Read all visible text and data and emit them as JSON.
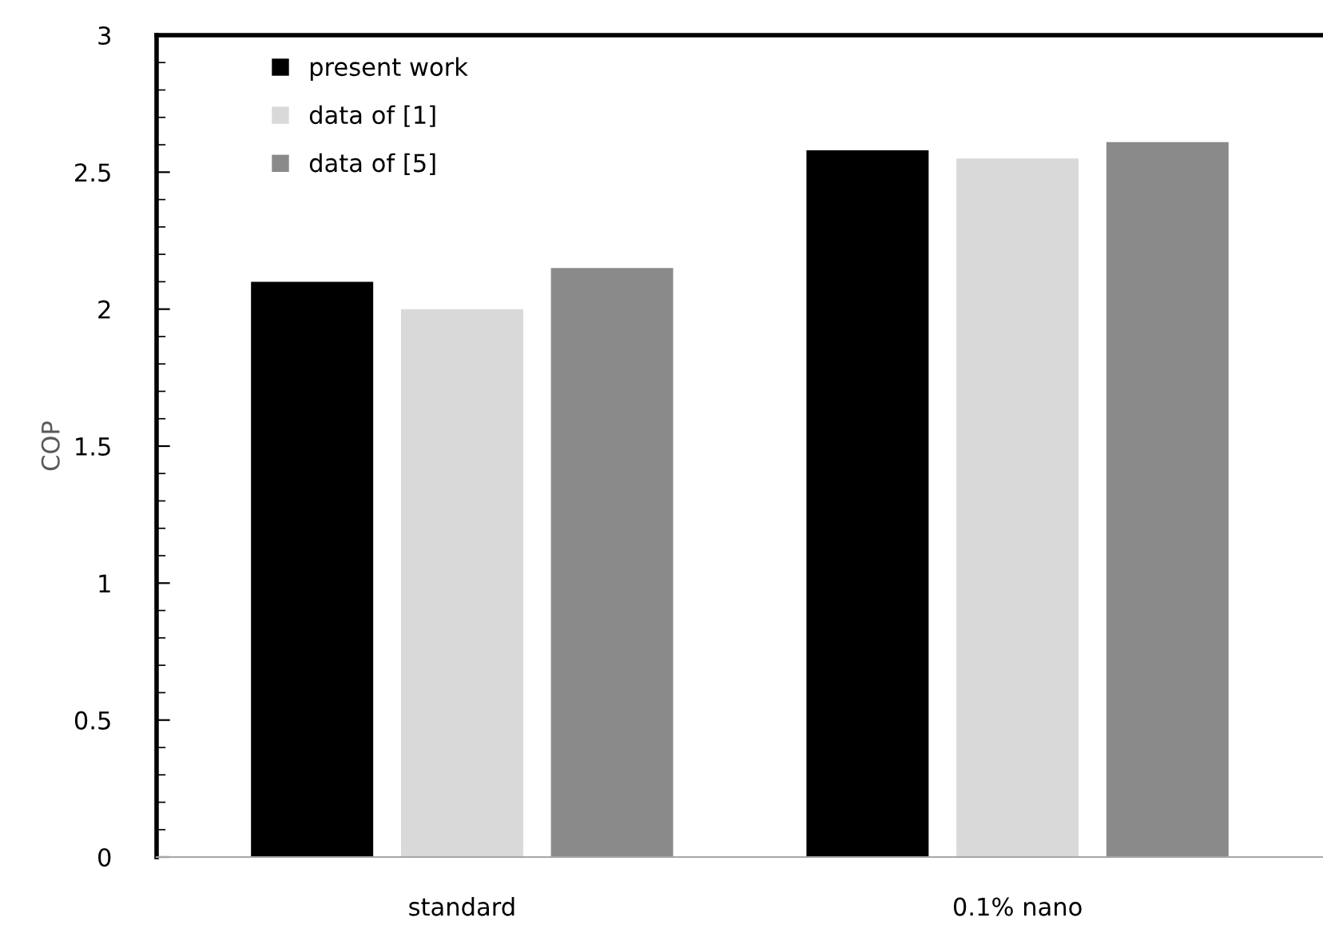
{
  "chart_data": {
    "type": "bar",
    "ylabel": "COP",
    "categories": [
      "standard",
      "0.1% nano"
    ],
    "series": [
      {
        "name": "present work",
        "color": "#000000",
        "values": [
          2.1,
          2.58
        ]
      },
      {
        "name": "data of [1]",
        "color": "#d9d9d9",
        "values": [
          2.0,
          2.55
        ]
      },
      {
        "name": "data of [5]",
        "color": "#8a8a8a",
        "values": [
          2.15,
          2.61
        ]
      }
    ],
    "ylim": [
      0,
      3
    ],
    "yticks": [
      0,
      0.5,
      1,
      1.5,
      2,
      2.5,
      3
    ],
    "grid": false,
    "legend": "top left"
  }
}
